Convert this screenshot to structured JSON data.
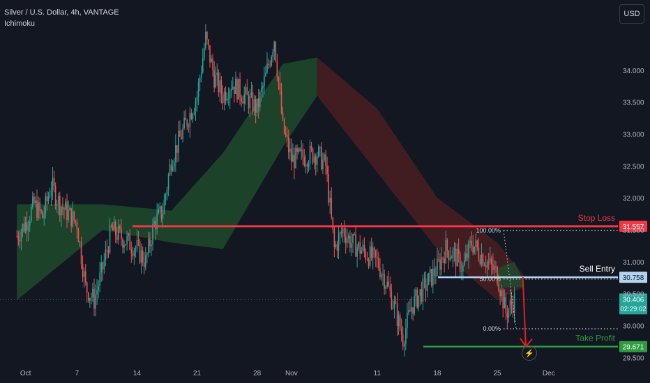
{
  "header": {
    "symbol": "Silver / U.S. Dollar, 4h, VANTAGE",
    "indicator": "Ichimoku"
  },
  "currency_button": "USD",
  "colors": {
    "background": "#131722",
    "up": "#26a69a",
    "down": "#ef5350",
    "stop": "#f23645",
    "entry": "#b2d4f0",
    "target": "#2e9d3f",
    "cloud_bull": "#1e4a2b",
    "cloud_bear": "#4a1f22",
    "arrow": "#e02020"
  },
  "icons": {
    "bolt": "lightning-icon"
  },
  "chart_data": {
    "type": "candlestick",
    "title": "Silver / U.S. Dollar, 4h, VANTAGE",
    "ylim": [
      29.45,
      35.1
    ],
    "y_ticks": [
      "34.000",
      "33.500",
      "33.000",
      "32.500",
      "32.000",
      "31.500",
      "31.000",
      "30.500",
      "30.000",
      "29.500"
    ],
    "y_tick_values": [
      34.0,
      33.5,
      33.0,
      32.5,
      32.0,
      31.5,
      31.0,
      30.5,
      30.0,
      29.5
    ],
    "x_ticks": [
      "Oct",
      "7",
      "14",
      "21",
      "28",
      "Nov",
      "11",
      "18",
      "25",
      "Dec"
    ],
    "x_tick_dates": [
      "2024-10-01",
      "2024-10-07",
      "2024-10-14",
      "2024-10-21",
      "2024-10-28",
      "2024-11-01",
      "2024-11-11",
      "2024-11-18",
      "2024-11-25",
      "2024-12-01"
    ],
    "close_path": [
      [
        "2024-09-30",
        31.4
      ],
      [
        "2024-10-01",
        31.6
      ],
      [
        "2024-10-02",
        31.9
      ],
      [
        "2024-10-03",
        31.7
      ],
      [
        "2024-10-04",
        32.2
      ],
      [
        "2024-10-05",
        31.9
      ],
      [
        "2024-10-07",
        31.6
      ],
      [
        "2024-10-08",
        30.6
      ],
      [
        "2024-10-09",
        30.4
      ],
      [
        "2024-10-10",
        30.9
      ],
      [
        "2024-10-11",
        31.5
      ],
      [
        "2024-10-14",
        31.2
      ],
      [
        "2024-10-15",
        31.0
      ],
      [
        "2024-10-16",
        31.6
      ],
      [
        "2024-10-17",
        31.8
      ],
      [
        "2024-10-18",
        32.6
      ],
      [
        "2024-10-21",
        33.6
      ],
      [
        "2024-10-22",
        34.5
      ],
      [
        "2024-10-23",
        33.9
      ],
      [
        "2024-10-24",
        33.6
      ],
      [
        "2024-10-25",
        33.8
      ],
      [
        "2024-10-28",
        33.4
      ],
      [
        "2024-10-29",
        33.9
      ],
      [
        "2024-10-30",
        34.5
      ],
      [
        "2024-10-31",
        33.1
      ],
      [
        "2024-11-01",
        32.6
      ],
      [
        "2024-11-04",
        32.7
      ],
      [
        "2024-11-05",
        32.5
      ],
      [
        "2024-11-06",
        31.2
      ],
      [
        "2024-11-07",
        31.5
      ],
      [
        "2024-11-08",
        31.3
      ],
      [
        "2024-11-11",
        31.0
      ],
      [
        "2024-11-12",
        30.7
      ],
      [
        "2024-11-13",
        30.3
      ],
      [
        "2024-11-14",
        29.8
      ],
      [
        "2024-11-15",
        30.3
      ],
      [
        "2024-11-18",
        30.9
      ],
      [
        "2024-11-19",
        31.2
      ],
      [
        "2024-11-20",
        31.1
      ],
      [
        "2024-11-21",
        30.9
      ],
      [
        "2024-11-22",
        31.3
      ],
      [
        "2024-11-25",
        30.8
      ],
      [
        "2024-11-26",
        30.2
      ],
      [
        "2024-11-27",
        30.4
      ]
    ],
    "cloud_bull": {
      "upper": [
        [
          "2024-09-30",
          31.9
        ],
        [
          "2024-10-10",
          31.9
        ],
        [
          "2024-10-18",
          31.8
        ],
        [
          "2024-10-24",
          32.7
        ],
        [
          "2024-10-31",
          34.1
        ],
        [
          "2024-11-04",
          34.2
        ]
      ],
      "lower": [
        [
          "2024-09-30",
          30.4
        ],
        [
          "2024-10-10",
          31.5
        ],
        [
          "2024-10-18",
          31.3
        ],
        [
          "2024-10-24",
          31.2
        ],
        [
          "2024-10-31",
          32.8
        ],
        [
          "2024-11-04",
          33.6
        ]
      ]
    },
    "cloud_bear": {
      "upper": [
        [
          "2024-11-04",
          34.2
        ],
        [
          "2024-11-11",
          33.4
        ],
        [
          "2024-11-18",
          32.0
        ],
        [
          "2024-11-25",
          31.3
        ],
        [
          "2024-11-28",
          30.8
        ]
      ],
      "lower": [
        [
          "2024-11-04",
          33.6
        ],
        [
          "2024-11-11",
          32.4
        ],
        [
          "2024-11-18",
          31.2
        ],
        [
          "2024-11-25",
          30.4
        ],
        [
          "2024-11-28",
          30.6
        ]
      ]
    },
    "cloud_bull_late": {
      "upper": [
        [
          "2024-11-25",
          30.9
        ],
        [
          "2024-11-27",
          31.0
        ],
        [
          "2024-11-28",
          30.7
        ]
      ],
      "lower": [
        [
          "2024-11-25",
          30.6
        ],
        [
          "2024-11-27",
          30.6
        ],
        [
          "2024-11-28",
          30.6
        ]
      ]
    },
    "levels": [
      {
        "name": "stop_loss",
        "label": "Stop Loss",
        "value": 31.557,
        "price_label": "31.557"
      },
      {
        "name": "sell_entry",
        "label": "Sell Entry",
        "value": 30.758,
        "price_label": "30.758"
      },
      {
        "name": "take_profit",
        "label": "Take Profit",
        "value": 29.671,
        "price_label": "29.671"
      }
    ],
    "current_price": {
      "value": 30.406,
      "label": "30.406",
      "countdown": "02:29:02"
    },
    "fib": [
      {
        "label": "100.00%",
        "value": 31.49
      },
      {
        "label": "50.00%",
        "value": 30.73
      },
      {
        "label": "0.00%",
        "value": 29.95
      }
    ],
    "arrow": {
      "from": [
        "2024-11-27",
        30.758
      ],
      "to": [
        "2024-11-28",
        29.671
      ]
    }
  }
}
